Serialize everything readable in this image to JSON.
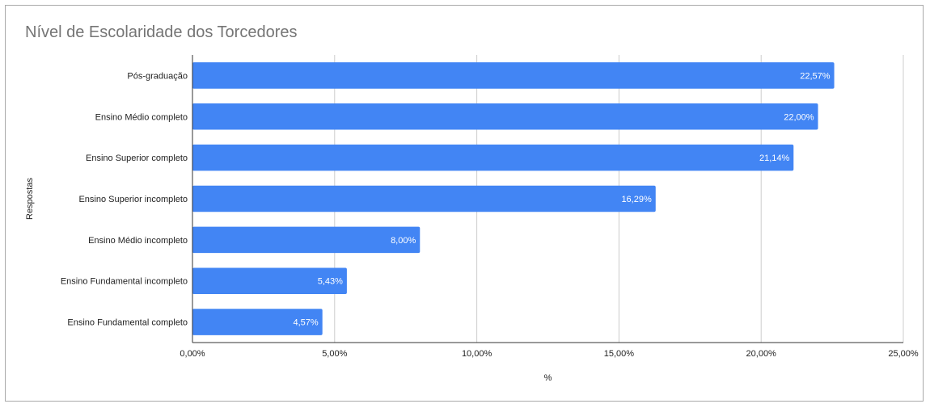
{
  "chart_data": {
    "type": "bar",
    "orientation": "horizontal",
    "title": "Nível de Escolaridade dos Torcedores",
    "xlabel": "%",
    "ylabel": "Respostas",
    "categories": [
      "Pós-graduação",
      "Ensino Médio completo",
      "Ensino Superior completo",
      "Ensino Superior incompleto",
      "Ensino Médio incompleto",
      "Ensino Fundamental incompleto",
      "Ensino Fundamental completo"
    ],
    "values": [
      22.57,
      22.0,
      21.14,
      16.29,
      8.0,
      5.43,
      4.57
    ],
    "value_labels": [
      "22,57%",
      "22,00%",
      "21,14%",
      "16,29%",
      "8,00%",
      "5,43%",
      "4,57%"
    ],
    "xlim": [
      0,
      25
    ],
    "x_ticks": [
      0,
      5,
      10,
      15,
      20,
      25
    ],
    "x_tick_labels": [
      "0,00%",
      "5,00%",
      "10,00%",
      "15,00%",
      "20,00%",
      "25,00%"
    ],
    "grid": true,
    "legend": "none",
    "bar_color": "#4285f4",
    "grid_color": "#cccccc",
    "axis_color": "#333333"
  }
}
